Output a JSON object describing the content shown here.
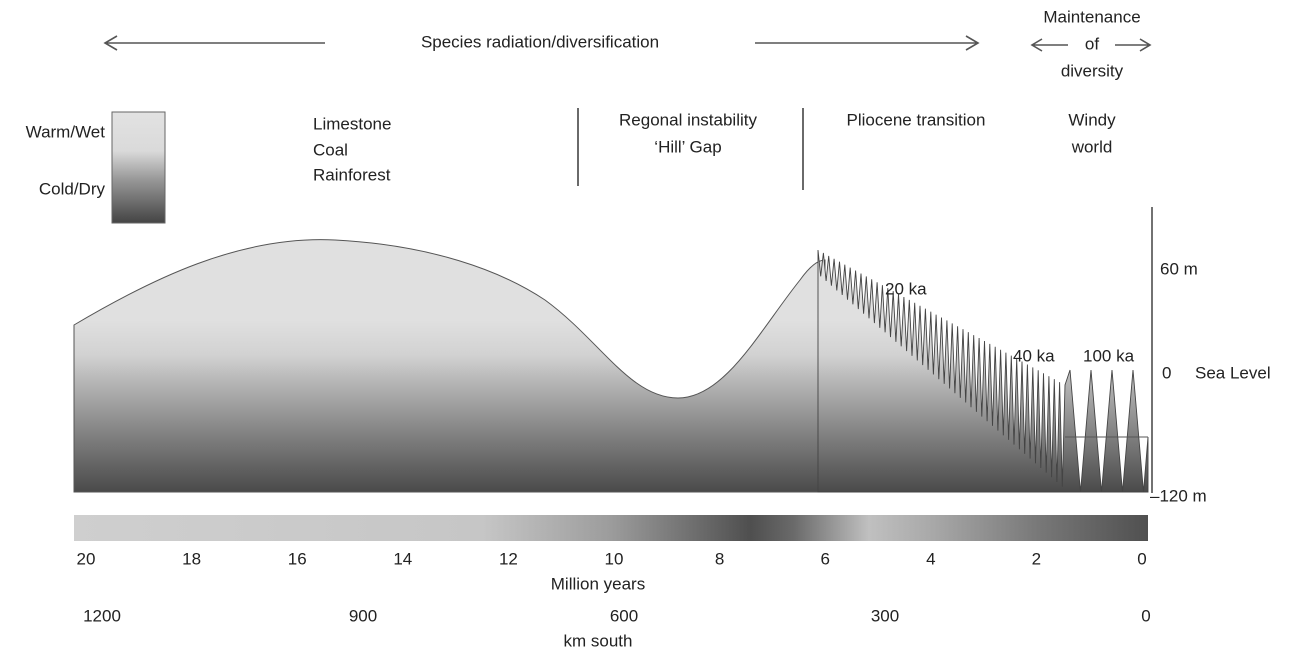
{
  "header": {
    "radiation": "Species radiation/diversification",
    "maintenance": [
      "Maintenance",
      "of",
      "diversity"
    ]
  },
  "legend": {
    "warm": "Warm/Wet",
    "cold": "Cold/Dry"
  },
  "periods": [
    {
      "lines": [
        "Limestone",
        "Coal",
        "Rainforest"
      ]
    },
    {
      "lines": [
        "Regonal instability",
        "‘Hill’ Gap"
      ]
    },
    {
      "lines": [
        "Pliocene transition"
      ]
    },
    {
      "lines": [
        "Windy",
        "world"
      ]
    }
  ],
  "cycles": [
    "20 ka",
    "40 ka",
    "100 ka"
  ],
  "sea_axis": {
    "top": "60 m",
    "zero": "0",
    "zero_label": "Sea Level",
    "bottom": "–120 m"
  },
  "time_axis": {
    "ticks": [
      "20",
      "18",
      "16",
      "14",
      "12",
      "10",
      "8",
      "6",
      "4",
      "2",
      "0"
    ],
    "title": "Million years"
  },
  "distance_axis": {
    "ticks": [
      "1200",
      "900",
      "600",
      "300",
      "0"
    ],
    "title": "km south"
  }
}
